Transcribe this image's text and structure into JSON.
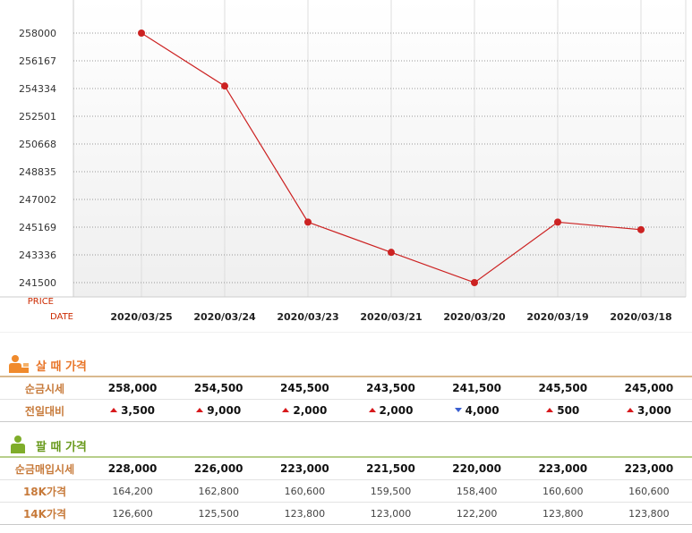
{
  "chart_data": {
    "type": "line",
    "x": [
      "2020/03/25",
      "2020/03/24",
      "2020/03/23",
      "2020/03/21",
      "2020/03/20",
      "2020/03/19",
      "2020/03/18"
    ],
    "y": [
      258000,
      254500,
      245500,
      243500,
      241500,
      245500,
      245000
    ],
    "yticks": [
      258000,
      256167,
      254334,
      252501,
      250668,
      248835,
      247002,
      245169,
      243336,
      241500
    ],
    "ylim": [
      241500,
      258000
    ],
    "ylabel": "PRICE",
    "xlabel": "DATE",
    "grid": true,
    "colors": {
      "line": "#cc2222",
      "marker": "#cc2222",
      "grid": "#aaaaaa"
    }
  },
  "buy": {
    "title": "살 때 가격",
    "icon": "person-buy-icon",
    "color": "#e8762a",
    "rows": [
      {
        "label": "순금시세",
        "values": [
          "258,000",
          "254,500",
          "245,500",
          "243,500",
          "241,500",
          "245,500",
          "245,000"
        ]
      },
      {
        "label": "전일대비",
        "changes": [
          {
            "dir": "up",
            "value": "3,500"
          },
          {
            "dir": "up",
            "value": "9,000"
          },
          {
            "dir": "up",
            "value": "2,000"
          },
          {
            "dir": "up",
            "value": "2,000"
          },
          {
            "dir": "down",
            "value": "4,000"
          },
          {
            "dir": "up",
            "value": "500"
          },
          {
            "dir": "up",
            "value": "3,000"
          }
        ]
      }
    ]
  },
  "sell": {
    "title": "팔 때 가격",
    "icon": "person-sell-icon",
    "color": "#6a9a1e",
    "rows": [
      {
        "label": "순금매입시세",
        "style": "bold",
        "values": [
          "228,000",
          "226,000",
          "223,000",
          "221,500",
          "220,000",
          "223,000",
          "223,000"
        ]
      },
      {
        "label": "18K가격",
        "style": "light",
        "values": [
          "164,200",
          "162,800",
          "160,600",
          "159,500",
          "158,400",
          "160,600",
          "160,600"
        ]
      },
      {
        "label": "14K가격",
        "style": "light",
        "values": [
          "126,600",
          "125,500",
          "123,800",
          "123,000",
          "122,200",
          "123,800",
          "123,800"
        ]
      }
    ]
  }
}
